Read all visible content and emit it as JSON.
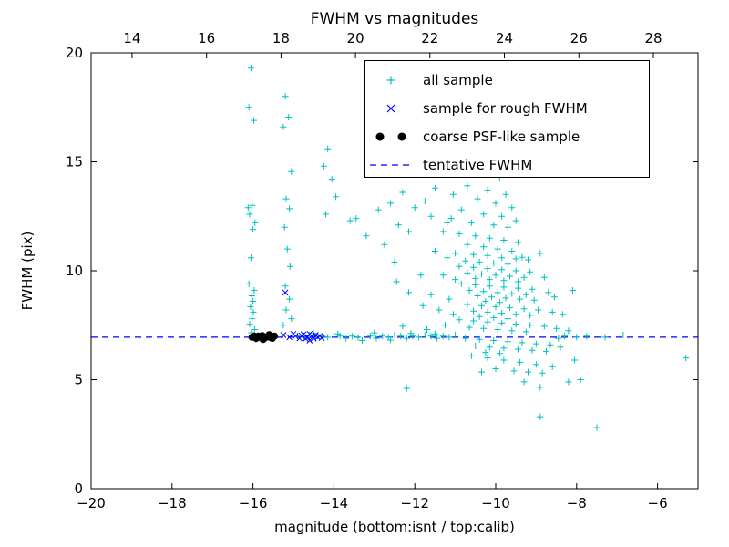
{
  "figure": {
    "title": "FWHM vs magnitudes",
    "xlabel": "magnitude (bottom:isnt / top:calib)",
    "ylabel": "FWHM (pix)"
  },
  "chart_data": {
    "type": "scatter",
    "title": "FWHM vs magnitudes",
    "xlabel": "magnitude (bottom:isnt / top:calib)",
    "ylabel": "FWHM (pix)",
    "xlim": [
      -20,
      -5
    ],
    "ylim": [
      0,
      20
    ],
    "x_ticks_bottom": [
      -20,
      -18,
      -16,
      -14,
      -12,
      -10,
      -8,
      -6
    ],
    "top_axis": {
      "range": [
        12.9,
        29.2
      ],
      "ticks": [
        14,
        16,
        18,
        20,
        22,
        24,
        26,
        28
      ]
    },
    "y_ticks": [
      0,
      5,
      10,
      15,
      20
    ],
    "grid": false,
    "legend_position": "upper right",
    "colors": {
      "all_sample": "#00bfbf",
      "rough_fwhm": "#0000ff",
      "psf_like": "#000000",
      "tentative_line": "#0000ff",
      "frame": "#000000"
    },
    "series": [
      {
        "name": "all sample",
        "marker": "plus",
        "color": "#00bfbf",
        "points": [
          [
            -16.05,
            19.3
          ],
          [
            -16.1,
            17.5
          ],
          [
            -15.98,
            16.9
          ],
          [
            -16.02,
            13.0
          ],
          [
            -16.08,
            12.6
          ],
          [
            -15.95,
            12.2
          ],
          [
            -16.0,
            11.9
          ],
          [
            -16.05,
            10.6
          ],
          [
            -16.1,
            9.4
          ],
          [
            -15.97,
            9.1
          ],
          [
            -16.03,
            8.85
          ],
          [
            -16.0,
            8.6
          ],
          [
            -16.06,
            8.35
          ],
          [
            -15.99,
            8.1
          ],
          [
            -16.02,
            7.8
          ],
          [
            -16.08,
            7.55
          ],
          [
            -15.96,
            7.3
          ],
          [
            -16.04,
            7.15
          ],
          [
            -15.93,
            6.85
          ],
          [
            -16.12,
            12.9
          ],
          [
            -15.2,
            18.0
          ],
          [
            -15.12,
            17.05
          ],
          [
            -15.25,
            16.6
          ],
          [
            -15.05,
            14.55
          ],
          [
            -15.18,
            13.3
          ],
          [
            -15.1,
            12.85
          ],
          [
            -15.22,
            12.0
          ],
          [
            -15.15,
            11.0
          ],
          [
            -15.08,
            10.2
          ],
          [
            -15.2,
            9.3
          ],
          [
            -15.1,
            8.7
          ],
          [
            -15.18,
            8.2
          ],
          [
            -15.05,
            7.8
          ],
          [
            -15.25,
            7.5
          ],
          [
            -14.15,
            15.6
          ],
          [
            -14.25,
            14.8
          ],
          [
            -14.05,
            14.2
          ],
          [
            -13.95,
            13.4
          ],
          [
            -14.2,
            12.6
          ],
          [
            -13.6,
            12.3
          ],
          [
            -13.45,
            12.4
          ],
          [
            -13.2,
            11.6
          ],
          [
            -12.9,
            12.8
          ],
          [
            -12.75,
            11.2
          ],
          [
            -12.6,
            13.1
          ],
          [
            -12.5,
            10.4
          ],
          [
            -12.4,
            12.1
          ],
          [
            -12.3,
            13.6
          ],
          [
            -12.15,
            11.8
          ],
          [
            -12.0,
            12.9
          ],
          [
            -11.9,
            14.7
          ],
          [
            -11.75,
            13.2
          ],
          [
            -11.6,
            12.5
          ],
          [
            -11.5,
            13.8
          ],
          [
            -11.35,
            14.9
          ],
          [
            -11.2,
            12.2
          ],
          [
            -11.05,
            13.5
          ],
          [
            -12.45,
            9.5
          ],
          [
            -12.15,
            9.0
          ],
          [
            -11.85,
            9.8
          ],
          [
            -10.4,
            15.4
          ],
          [
            -10.15,
            15.1
          ],
          [
            -10.5,
            14.6
          ],
          [
            -9.9,
            14.3
          ],
          [
            -10.7,
            13.9
          ],
          [
            -10.2,
            13.7
          ],
          [
            -9.75,
            13.5
          ],
          [
            -10.45,
            13.3
          ],
          [
            -10.0,
            13.1
          ],
          [
            -9.6,
            12.9
          ],
          [
            -10.85,
            12.8
          ],
          [
            -10.3,
            12.6
          ],
          [
            -9.85,
            12.5
          ],
          [
            -11.1,
            12.4
          ],
          [
            -9.5,
            12.3
          ],
          [
            -10.6,
            12.2
          ],
          [
            -10.05,
            12.1
          ],
          [
            -9.7,
            12.0
          ],
          [
            -11.3,
            11.8
          ],
          [
            -10.9,
            11.7
          ],
          [
            -10.5,
            11.6
          ],
          [
            -10.15,
            11.5
          ],
          [
            -9.8,
            11.4
          ],
          [
            -9.45,
            11.3
          ],
          [
            -10.7,
            11.2
          ],
          [
            -10.3,
            11.1
          ],
          [
            -9.95,
            11.0
          ],
          [
            -9.6,
            10.9
          ],
          [
            -11.0,
            10.8
          ],
          [
            -10.55,
            10.75
          ],
          [
            -10.2,
            10.7
          ],
          [
            -9.85,
            10.6
          ],
          [
            -9.5,
            10.55
          ],
          [
            -9.2,
            10.5
          ],
          [
            -10.75,
            10.45
          ],
          [
            -10.4,
            10.4
          ],
          [
            -10.05,
            10.35
          ],
          [
            -9.7,
            10.3
          ],
          [
            -9.35,
            10.62
          ],
          [
            -11.5,
            10.9
          ],
          [
            -11.2,
            10.6
          ],
          [
            -8.9,
            10.8
          ],
          [
            -10.9,
            10.2
          ],
          [
            -10.55,
            10.15
          ],
          [
            -10.2,
            10.1
          ],
          [
            -9.85,
            10.05
          ],
          [
            -9.5,
            10.0
          ],
          [
            -9.15,
            9.95
          ],
          [
            -10.7,
            9.9
          ],
          [
            -10.35,
            9.85
          ],
          [
            -10.0,
            9.8
          ],
          [
            -9.65,
            9.75
          ],
          [
            -9.3,
            9.7
          ],
          [
            -10.5,
            9.65
          ],
          [
            -10.15,
            9.6
          ],
          [
            -9.8,
            9.55
          ],
          [
            -9.45,
            9.5
          ],
          [
            -11.3,
            9.8
          ],
          [
            -11.0,
            9.6
          ],
          [
            -8.8,
            9.7
          ],
          [
            -10.85,
            9.4
          ],
          [
            -10.5,
            9.35
          ],
          [
            -10.15,
            9.3
          ],
          [
            -9.8,
            9.25
          ],
          [
            -9.45,
            9.2
          ],
          [
            -9.1,
            9.15
          ],
          [
            -10.65,
            9.1
          ],
          [
            -10.3,
            9.05
          ],
          [
            -9.95,
            9.0
          ],
          [
            -9.6,
            8.95
          ],
          [
            -9.25,
            8.9
          ],
          [
            -10.45,
            8.85
          ],
          [
            -10.1,
            8.8
          ],
          [
            -9.75,
            8.75
          ],
          [
            -9.4,
            8.7
          ],
          [
            -9.05,
            8.65
          ],
          [
            -10.25,
            8.6
          ],
          [
            -9.9,
            8.55
          ],
          [
            -8.7,
            9.0
          ],
          [
            -8.55,
            8.8
          ],
          [
            -11.6,
            8.9
          ],
          [
            -11.15,
            8.7
          ],
          [
            -10.7,
            8.45
          ],
          [
            -10.35,
            8.4
          ],
          [
            -10.0,
            8.35
          ],
          [
            -9.65,
            8.3
          ],
          [
            -9.3,
            8.25
          ],
          [
            -8.95,
            8.2
          ],
          [
            -10.55,
            8.15
          ],
          [
            -10.2,
            8.1
          ],
          [
            -9.85,
            8.05
          ],
          [
            -9.5,
            8.0
          ],
          [
            -9.15,
            7.95
          ],
          [
            -10.4,
            7.9
          ],
          [
            -10.05,
            7.85
          ],
          [
            -9.7,
            7.8
          ],
          [
            -8.6,
            8.1
          ],
          [
            -8.35,
            8.0
          ],
          [
            -11.4,
            8.2
          ],
          [
            -11.05,
            8.0
          ],
          [
            -11.8,
            8.4
          ],
          [
            -10.9,
            7.75
          ],
          [
            -10.55,
            7.7
          ],
          [
            -10.2,
            7.65
          ],
          [
            -9.85,
            7.6
          ],
          [
            -9.5,
            7.55
          ],
          [
            -9.15,
            7.5
          ],
          [
            -8.8,
            7.45
          ],
          [
            -10.65,
            7.4
          ],
          [
            -10.3,
            7.35
          ],
          [
            -9.95,
            7.3
          ],
          [
            -9.6,
            7.25
          ],
          [
            -9.25,
            7.2
          ],
          [
            -8.5,
            7.35
          ],
          [
            -8.2,
            7.25
          ],
          [
            -11.25,
            7.5
          ],
          [
            -11.7,
            7.3
          ],
          [
            -12.3,
            7.45
          ],
          [
            -10.75,
            6.9
          ],
          [
            -10.4,
            6.85
          ],
          [
            -10.05,
            6.8
          ],
          [
            -9.7,
            6.75
          ],
          [
            -9.35,
            6.7
          ],
          [
            -9.0,
            6.65
          ],
          [
            -8.65,
            6.6
          ],
          [
            -10.5,
            6.55
          ],
          [
            -10.15,
            6.5
          ],
          [
            -9.8,
            6.45
          ],
          [
            -9.45,
            6.4
          ],
          [
            -9.1,
            6.35
          ],
          [
            -8.75,
            6.3
          ],
          [
            -10.25,
            6.25
          ],
          [
            -9.9,
            6.2
          ],
          [
            -8.4,
            6.5
          ],
          [
            -10.6,
            6.1
          ],
          [
            -10.2,
            6.0
          ],
          [
            -9.8,
            5.9
          ],
          [
            -9.4,
            5.8
          ],
          [
            -9.0,
            5.7
          ],
          [
            -8.6,
            5.6
          ],
          [
            -10.0,
            5.5
          ],
          [
            -9.55,
            5.4
          ],
          [
            -9.2,
            5.35
          ],
          [
            -8.85,
            5.3
          ],
          [
            -10.35,
            5.35
          ],
          [
            -9.3,
            4.9
          ],
          [
            -8.9,
            4.65
          ],
          [
            -8.2,
            4.9
          ],
          [
            -12.2,
            4.6
          ],
          [
            -8.9,
            3.3
          ],
          [
            -7.5,
            2.8
          ],
          [
            -8.1,
            9.1
          ],
          [
            -7.75,
            7.0
          ],
          [
            -7.3,
            6.95
          ],
          [
            -6.85,
            7.05
          ],
          [
            -5.3,
            6.0
          ],
          [
            -7.9,
            5.0
          ],
          [
            -8.05,
            5.9
          ],
          [
            -8.0,
            6.95
          ],
          [
            -8.3,
            7.0
          ],
          [
            -8.45,
            6.9
          ],
          [
            -14.9,
            7.0
          ],
          [
            -14.75,
            6.95
          ],
          [
            -14.6,
            7.05
          ],
          [
            -14.45,
            6.9
          ],
          [
            -14.3,
            7.0
          ],
          [
            -14.15,
            6.95
          ],
          [
            -14.0,
            7.05
          ],
          [
            -13.85,
            7.0
          ],
          [
            -13.7,
            6.9
          ],
          [
            -13.55,
            7.0
          ],
          [
            -13.4,
            6.95
          ],
          [
            -13.25,
            7.05
          ],
          [
            -13.1,
            7.0
          ],
          [
            -12.95,
            6.9
          ],
          [
            -12.8,
            7.0
          ],
          [
            -12.65,
            6.95
          ],
          [
            -12.5,
            7.05
          ],
          [
            -12.35,
            7.0
          ],
          [
            -12.2,
            6.9
          ],
          [
            -12.05,
            7.0
          ],
          [
            -11.9,
            6.95
          ],
          [
            -11.75,
            7.05
          ],
          [
            -11.6,
            7.0
          ],
          [
            -11.45,
            6.9
          ],
          [
            -11.3,
            7.0
          ],
          [
            -11.15,
            6.95
          ],
          [
            -11.0,
            7.05
          ],
          [
            -13.0,
            7.15
          ],
          [
            -12.6,
            6.82
          ],
          [
            -13.3,
            6.8
          ],
          [
            -13.9,
            7.1
          ],
          [
            -14.5,
            7.12
          ],
          [
            -12.1,
            7.12
          ],
          [
            -11.5,
            7.1
          ]
        ]
      },
      {
        "name": "sample for rough FWHM",
        "marker": "x",
        "color": "#0000ff",
        "points": [
          [
            -15.2,
            9.0
          ],
          [
            -15.25,
            7.05
          ],
          [
            -15.1,
            6.95
          ],
          [
            -15.0,
            7.1
          ],
          [
            -14.95,
            7.0
          ],
          [
            -14.85,
            6.9
          ],
          [
            -14.8,
            7.02
          ],
          [
            -14.75,
            7.08
          ],
          [
            -14.7,
            6.88
          ],
          [
            -14.65,
            6.95
          ],
          [
            -14.6,
            7.1
          ],
          [
            -14.55,
            7.0
          ],
          [
            -14.5,
            6.9
          ],
          [
            -14.45,
            7.05
          ],
          [
            -14.4,
            6.95
          ],
          [
            -14.35,
            7.0
          ],
          [
            -14.3,
            6.92
          ],
          [
            -14.6,
            6.8
          ]
        ]
      },
      {
        "name": "coarse PSF-like sample",
        "marker": "circle",
        "color": "#000000",
        "points": [
          [
            -16.02,
            6.95
          ],
          [
            -15.97,
            7.0
          ],
          [
            -15.92,
            6.9
          ],
          [
            -15.87,
            7.0
          ],
          [
            -15.82,
            6.95
          ],
          [
            -15.77,
            7.02
          ],
          [
            -15.72,
            6.9
          ],
          [
            -15.67,
            6.96
          ],
          [
            -15.62,
            7.0
          ],
          [
            -15.57,
            6.94
          ],
          [
            -15.52,
            6.9
          ],
          [
            -15.47,
            7.0
          ],
          [
            -15.6,
            7.06
          ],
          [
            -15.75,
            6.85
          ],
          [
            -15.55,
            6.98
          ]
        ]
      },
      {
        "name": "tentative FWHM",
        "marker": "dashed-line",
        "color": "#0000ff",
        "hline_y": 6.95
      }
    ]
  }
}
